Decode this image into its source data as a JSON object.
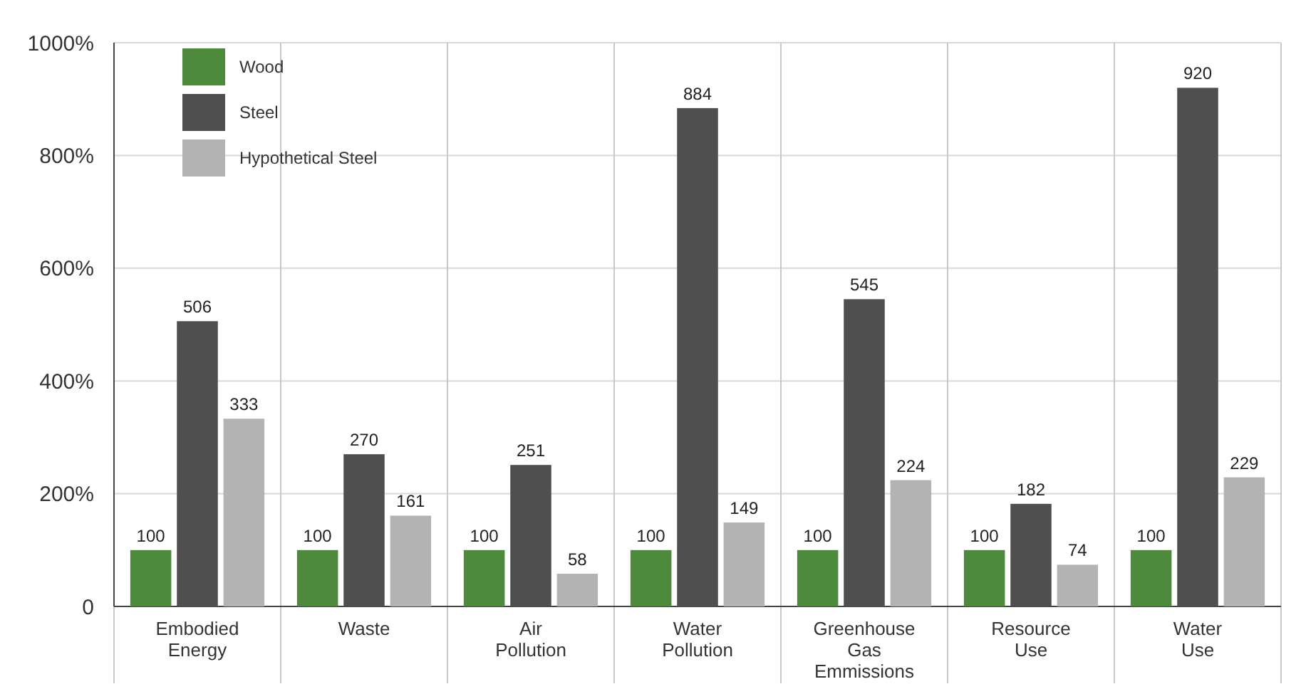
{
  "chart_data": {
    "type": "bar",
    "categories": [
      "Embodied Energy",
      "Waste",
      "Air Pollution",
      "Water Pollution",
      "Greenhouse Gas Emmissions",
      "Resource Use",
      "Water Use"
    ],
    "series": [
      {
        "name": "Wood",
        "color": "#4e8a3c",
        "values": [
          100,
          100,
          100,
          100,
          100,
          100,
          100
        ]
      },
      {
        "name": "Steel",
        "color": "#4f4f4f",
        "values": [
          506,
          270,
          251,
          884,
          545,
          182,
          920
        ]
      },
      {
        "name": "Hypothetical Steel",
        "color": "#b3b3b3",
        "values": [
          333,
          161,
          58,
          149,
          224,
          74,
          229
        ]
      }
    ],
    "ylim": [
      0,
      1000
    ],
    "yticks": [
      0,
      {
        "value": 200,
        "label": "200%"
      },
      {
        "value": 400,
        "label": "400%"
      },
      {
        "value": 600,
        "label": "600%"
      },
      {
        "value": 800,
        "label": "800%"
      },
      {
        "value": 1000,
        "label": "1000%"
      }
    ],
    "grid": true,
    "legend": "top left",
    "data_labels": true
  }
}
